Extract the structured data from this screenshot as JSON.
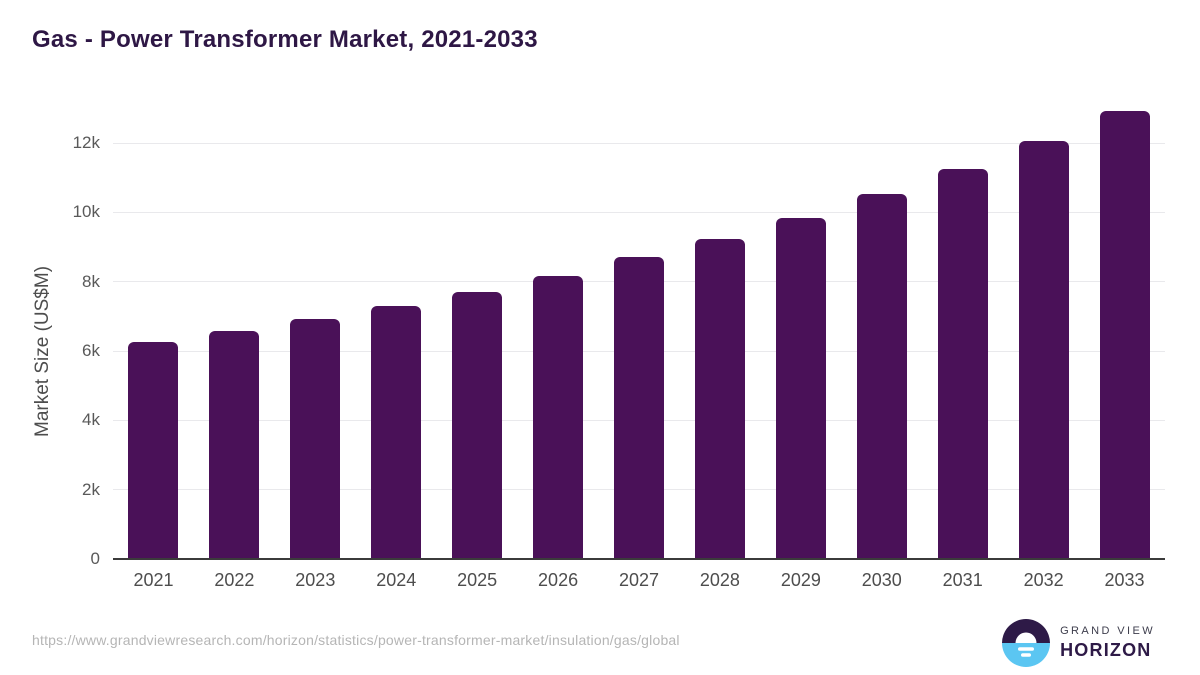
{
  "title": "Gas - Power Transformer Market, 2021-2033",
  "colors": {
    "bar": "#4a1158",
    "title": "#2e1745",
    "axis_text": "#4d4d4d",
    "tick_text": "#595959",
    "gridline": "#e9e9ec",
    "axis_line": "#3b3b3b",
    "url_text": "#b5b5b5",
    "logo_dark": "#2e1a47",
    "logo_blue": "#5bc6f2"
  },
  "chart_data": {
    "type": "bar",
    "title": "Gas - Power Transformer Market, 2021-2033",
    "categories": [
      "2021",
      "2022",
      "2023",
      "2024",
      "2025",
      "2026",
      "2027",
      "2028",
      "2029",
      "2030",
      "2031",
      "2032",
      "2033"
    ],
    "values": [
      6250,
      6580,
      6920,
      7300,
      7700,
      8160,
      8710,
      9230,
      9840,
      10530,
      11250,
      12060,
      12920
    ],
    "xlabel": "",
    "ylabel": "Market Size (US$M)",
    "ylim": [
      0,
      13000
    ],
    "yticks": [
      0,
      2000,
      4000,
      6000,
      8000,
      10000,
      12000
    ],
    "ytick_labels": [
      "0",
      "2k",
      "4k",
      "6k",
      "8k",
      "10k",
      "12k"
    ],
    "grid": true,
    "legend": false,
    "bar_color": "#4a1158"
  },
  "footer": {
    "source_url": "https://www.grandviewresearch.com/horizon/statistics/power-transformer-market/insulation/gas/global",
    "logo": {
      "line1": "GRAND VIEW",
      "line2": "HORIZON"
    }
  }
}
